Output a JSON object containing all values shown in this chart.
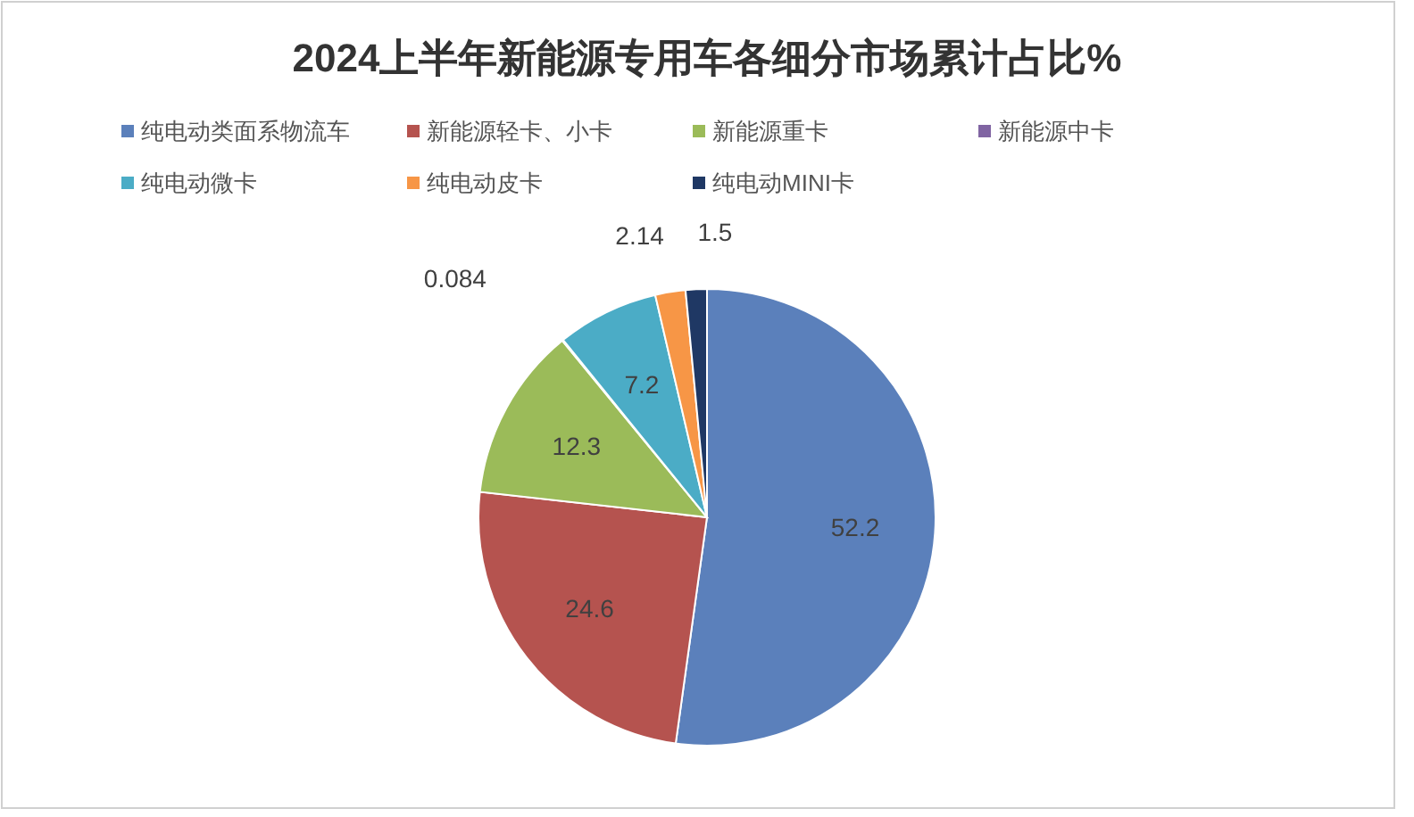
{
  "chart_data": {
    "type": "pie",
    "title": "2024上半年新能源专用车各细分市场累计占比%",
    "categories": [
      "纯电动类面系物流车",
      "新能源轻卡、小卡",
      "新能源重卡",
      "新能源中卡",
      "纯电动微卡",
      "纯电动皮卡",
      "纯电动MINI卡"
    ],
    "values": [
      52.2,
      24.6,
      12.3,
      0.084,
      7.2,
      2.14,
      1.5
    ],
    "colors": [
      "#5b80bb",
      "#b5534f",
      "#9bbb59",
      "#8064a2",
      "#4bacc6",
      "#f79646",
      "#1f3864"
    ],
    "data_labels": true,
    "legend": "top"
  }
}
